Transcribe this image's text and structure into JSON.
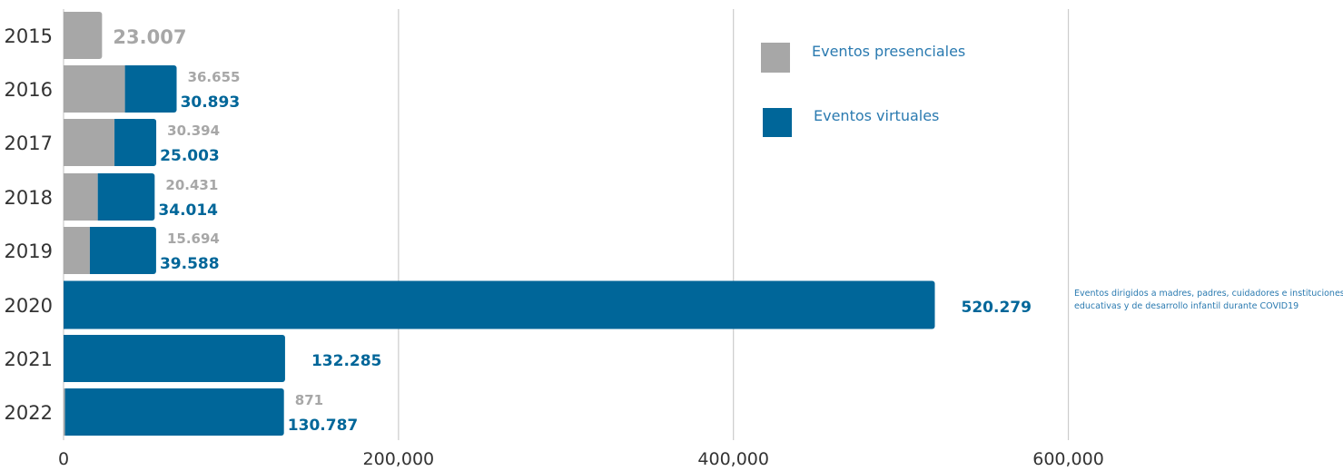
{
  "colors": {
    "presencial": "#a7a7a7",
    "virtual": "#006699",
    "grid": "#cccccc",
    "axis_text": "#333333",
    "legend_text": "#2a7ab0"
  },
  "chart_data": {
    "type": "bar",
    "orientation": "horizontal",
    "stacked": true,
    "categories": [
      "2015",
      "2016",
      "2017",
      "2018",
      "2019",
      "2020",
      "2021",
      "2022"
    ],
    "series": [
      {
        "name": "Eventos presenciales",
        "values": [
          23007,
          36655,
          30394,
          20431,
          15694,
          0,
          0,
          871
        ],
        "labels": [
          "23.007",
          "36.655",
          "30.394",
          "20.431",
          "15.694",
          "",
          "",
          "871"
        ]
      },
      {
        "name": "Eventos virtuales",
        "values": [
          0,
          30893,
          25003,
          34014,
          39588,
          520279,
          132285,
          130787
        ],
        "labels": [
          "",
          "30.893",
          "25.003",
          "34.014",
          "39.588",
          "520.279",
          "132.285",
          "130.787"
        ]
      }
    ],
    "xlim": [
      0,
      764000
    ],
    "xticks": [
      0,
      200000,
      400000,
      600000
    ],
    "xtick_labels": [
      "0",
      "200,000",
      "400,000",
      "600,000"
    ],
    "grid": true,
    "legend_position": "top-right",
    "annotation": {
      "category": "2020",
      "lines": [
        "Eventos dirigidos a madres, padres, cuidadores e instituciones",
        "educativas y de desarrollo infantil durante COVID19"
      ]
    }
  }
}
